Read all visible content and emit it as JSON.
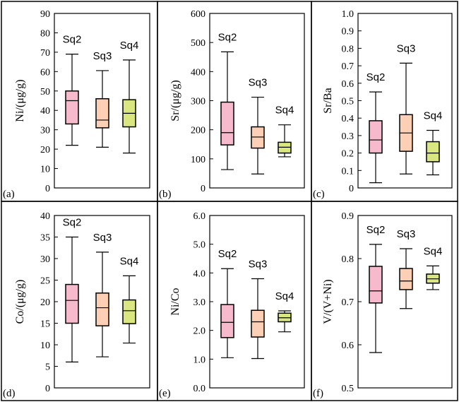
{
  "colors": {
    "Sq2": "#f7b9cc",
    "Sq3": "#fdd0b5",
    "Sq4": "#dae67f"
  },
  "chart_data": [
    {
      "type": "box",
      "panel": "(a)",
      "ylabel": "Ni/(μg/g)",
      "ylim": [
        0,
        90
      ],
      "ticks": [
        0,
        10,
        20,
        30,
        40,
        50,
        60,
        70,
        80,
        90
      ],
      "tick_labels": [
        "0",
        "10",
        "20",
        "30",
        "40",
        "50",
        "60",
        "70",
        "80",
        "90"
      ],
      "categories": [
        "Sq2",
        "Sq3",
        "Sq4"
      ],
      "boxes": [
        {
          "name": "Sq2",
          "min": 22,
          "q1": 33,
          "median": 45,
          "q3": 50,
          "max": 69
        },
        {
          "name": "Sq3",
          "min": 21,
          "q1": 31,
          "median": 35,
          "q3": 46,
          "max": 60.5
        },
        {
          "name": "Sq4",
          "min": 18,
          "q1": 31.5,
          "median": 38.5,
          "q3": 45.5,
          "max": 66
        }
      ]
    },
    {
      "type": "box",
      "panel": "(b)",
      "ylabel": "Sr/(μg/g)",
      "ylim": [
        0,
        600
      ],
      "ticks": [
        0,
        100,
        200,
        300,
        400,
        500,
        600
      ],
      "tick_labels": [
        "0",
        "100",
        "200",
        "300",
        "400",
        "500",
        "600"
      ],
      "categories": [
        "Sq2",
        "Sq3",
        "Sq4"
      ],
      "boxes": [
        {
          "name": "Sq2",
          "min": 63,
          "q1": 148,
          "median": 190,
          "q3": 295,
          "max": 468
        },
        {
          "name": "Sq3",
          "min": 48,
          "q1": 137,
          "median": 175,
          "q3": 210,
          "max": 312
        },
        {
          "name": "Sq4",
          "min": 107,
          "q1": 120,
          "median": 140,
          "q3": 157,
          "max": 217
        }
      ]
    },
    {
      "type": "box",
      "panel": "(c)",
      "ylabel": "Sr/Ba",
      "ylim": [
        0,
        1.0
      ],
      "ticks": [
        0,
        0.1,
        0.2,
        0.3,
        0.4,
        0.5,
        0.6,
        0.7,
        0.8,
        0.9,
        1.0
      ],
      "tick_labels": [
        "0",
        "0.1",
        "0.2",
        "0.3",
        "0.4",
        "0.5",
        "0.6",
        "0.7",
        "0.8",
        "0.9",
        "1.0"
      ],
      "categories": [
        "Sq2",
        "Sq3",
        "Sq4"
      ],
      "boxes": [
        {
          "name": "Sq2",
          "min": 0.03,
          "q1": 0.2,
          "median": 0.275,
          "q3": 0.385,
          "max": 0.55
        },
        {
          "name": "Sq3",
          "min": 0.08,
          "q1": 0.21,
          "median": 0.315,
          "q3": 0.42,
          "max": 0.715
        },
        {
          "name": "Sq4",
          "min": 0.075,
          "q1": 0.15,
          "median": 0.2,
          "q3": 0.265,
          "max": 0.33
        }
      ]
    },
    {
      "type": "box",
      "panel": "(d)",
      "ylabel": "Co/(μg/g)",
      "ylim": [
        0,
        40
      ],
      "ticks": [
        0,
        5,
        10,
        15,
        20,
        25,
        30,
        35,
        40
      ],
      "tick_labels": [
        "0",
        "5",
        "10",
        "15",
        "20",
        "25",
        "30",
        "35",
        "40"
      ],
      "categories": [
        "Sq2",
        "Sq3",
        "Sq4"
      ],
      "boxes": [
        {
          "name": "Sq2",
          "min": 6,
          "q1": 15,
          "median": 20.3,
          "q3": 24,
          "max": 35
        },
        {
          "name": "Sq3",
          "min": 7.2,
          "q1": 14.4,
          "median": 18.6,
          "q3": 22,
          "max": 31.5
        },
        {
          "name": "Sq4",
          "min": 10.4,
          "q1": 14.9,
          "median": 17.9,
          "q3": 20.4,
          "max": 26
        }
      ]
    },
    {
      "type": "box",
      "panel": "(e)",
      "ylabel": "Ni/Co",
      "ylim": [
        0,
        6.0
      ],
      "ticks": [
        0,
        1,
        2,
        3,
        4,
        5,
        6
      ],
      "tick_labels": [
        "0.0",
        "1.0",
        "2.0",
        "3.0",
        "4.0",
        "5.0",
        "6.0"
      ],
      "categories": [
        "Sq2",
        "Sq3",
        "Sq4"
      ],
      "boxes": [
        {
          "name": "Sq2",
          "min": 1.05,
          "q1": 1.75,
          "median": 2.28,
          "q3": 2.9,
          "max": 4.15
        },
        {
          "name": "Sq3",
          "min": 1.02,
          "q1": 1.77,
          "median": 2.3,
          "q3": 2.7,
          "max": 3.8
        },
        {
          "name": "Sq4",
          "min": 1.95,
          "q1": 2.3,
          "median": 2.44,
          "q3": 2.6,
          "max": 2.68
        }
      ]
    },
    {
      "type": "box",
      "panel": "(f)",
      "ylabel": "V/(V+Ni)",
      "ylim": [
        0.5,
        0.9
      ],
      "ticks": [
        0.5,
        0.6,
        0.7,
        0.8,
        0.9
      ],
      "tick_labels": [
        "0.5",
        "0.6",
        "0.7",
        "0.8",
        "0.9"
      ],
      "categories": [
        "Sq2",
        "Sq3",
        "Sq4"
      ],
      "boxes": [
        {
          "name": "Sq2",
          "min": 0.582,
          "q1": 0.697,
          "median": 0.725,
          "q3": 0.782,
          "max": 0.833
        },
        {
          "name": "Sq3",
          "min": 0.684,
          "q1": 0.728,
          "median": 0.748,
          "q3": 0.777,
          "max": 0.823
        },
        {
          "name": "Sq4",
          "min": 0.728,
          "q1": 0.743,
          "median": 0.753,
          "q3": 0.764,
          "max": 0.783
        }
      ]
    }
  ]
}
